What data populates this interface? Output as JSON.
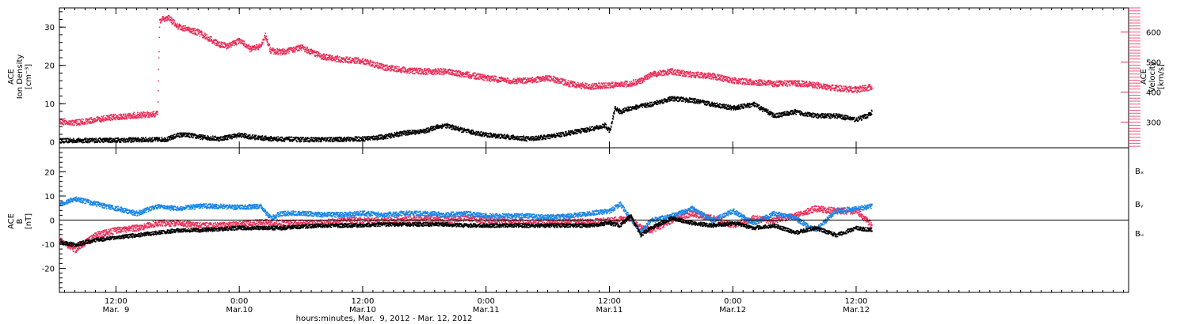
{
  "colors": {
    "black": "#000000",
    "red": "#e8305a",
    "blue": "#1a86e6"
  },
  "x_axis": {
    "title": "hours:minutes, Mar.  9, 2012 - Mar. 12, 2012",
    "range_hours": [
      6.5,
      110.5
    ],
    "major_ticks": [
      {
        "t": 12,
        "time": "12:00",
        "date": "Mar.  9"
      },
      {
        "t": 24,
        "time": "0:00",
        "date": "Mar.10"
      },
      {
        "t": 36,
        "time": "12:00",
        "date": "Mar.10"
      },
      {
        "t": 48,
        "time": "0:00",
        "date": "Mar.11"
      },
      {
        "t": 60,
        "time": "12:00",
        "date": "Mar.11"
      },
      {
        "t": 72,
        "time": "0:00",
        "date": "Mar.12"
      },
      {
        "t": 84,
        "time": "12:00",
        "date": "Mar.12"
      }
    ]
  },
  "chart_data": [
    {
      "type": "scatter",
      "panel": "top",
      "ylabel_left": [
        "ACE",
        "Ion Density",
        "[cm⁻³]"
      ],
      "ylabel_right": [
        "ACE",
        "Velocity",
        "[km/s]"
      ],
      "ylim_left": [
        -1.5,
        35
      ],
      "ylim_right": [
        215,
        680
      ],
      "yticks_left": [
        "0",
        "10",
        "20",
        "30"
      ],
      "yticks_right": [
        "300",
        "400",
        "500",
        "600"
      ],
      "series": [
        {
          "axis": "left",
          "color": "#000000",
          "x": [
            6.5,
            10,
            13,
            16,
            17,
            18,
            19,
            20,
            22,
            24,
            25,
            27,
            30,
            33,
            36,
            38,
            40,
            42,
            43,
            44,
            46,
            48,
            52,
            54,
            56,
            58,
            59,
            59.5,
            60,
            60.5,
            61,
            62,
            64,
            66,
            68,
            70,
            72,
            74,
            76,
            78,
            80,
            82,
            84,
            85,
            85.5
          ],
          "y": [
            0.5,
            0.6,
            0.7,
            0.8,
            0.9,
            2,
            2,
            1.5,
            1,
            2,
            1.5,
            1,
            0.8,
            0.8,
            1,
            1.5,
            2.5,
            3,
            4,
            4.5,
            3,
            2,
            1,
            1.5,
            2.5,
            3.5,
            4,
            4.5,
            3,
            9,
            8,
            9,
            10,
            11.5,
            11,
            10,
            9,
            10,
            7,
            8,
            7,
            7,
            6,
            7,
            8
          ],
          "spread": 0.6
        },
        {
          "axis": "right",
          "color": "#e8305a",
          "x": [
            6.5,
            8,
            10,
            12,
            14,
            16,
            16.2,
            17,
            18,
            19,
            20,
            21,
            22,
            23,
            24,
            25,
            26,
            26.5,
            27,
            28,
            30,
            32,
            34,
            36,
            38,
            40,
            42,
            44,
            46,
            48,
            50,
            52,
            54,
            56,
            58,
            60,
            62,
            63,
            64,
            66,
            68,
            70,
            72,
            74,
            76,
            78,
            80,
            82,
            84,
            85.5
          ],
          "y": [
            305,
            300,
            310,
            320,
            325,
            330,
            640,
            650,
            620,
            610,
            600,
            580,
            560,
            555,
            575,
            545,
            555,
            590,
            540,
            535,
            550,
            520,
            510,
            505,
            485,
            475,
            470,
            470,
            460,
            450,
            440,
            440,
            450,
            430,
            420,
            425,
            430,
            440,
            460,
            470,
            460,
            455,
            440,
            435,
            430,
            432,
            425,
            415,
            410,
            420
          ],
          "spread": 10
        }
      ]
    },
    {
      "type": "scatter",
      "panel": "bottom",
      "ylabel_left": [
        "ACE",
        "B",
        "[nT]"
      ],
      "ylim": [
        -30,
        30
      ],
      "yticks": [
        "-20",
        "-10",
        "0",
        "10",
        "20"
      ],
      "legend": [
        "Bₓ",
        "Bᵧ",
        "Bᵤ"
      ],
      "legend_placement": "right",
      "series": [
        {
          "name": "Bx",
          "color": "#000000",
          "x": [
            6.5,
            8,
            10,
            12,
            14,
            16,
            18,
            20,
            22,
            24,
            26,
            28,
            30,
            32,
            34,
            36,
            38,
            40,
            42,
            44,
            46,
            48,
            50,
            52,
            54,
            56,
            58,
            60,
            61,
            62,
            63,
            64,
            66,
            68,
            70,
            72,
            74,
            76,
            78,
            80,
            82,
            84,
            85.5
          ],
          "y": [
            -9,
            -10,
            -8,
            -7,
            -6,
            -5,
            -4,
            -4,
            -3.5,
            -3,
            -3,
            -3,
            -2.5,
            -2,
            -2,
            -2,
            -1.5,
            -1.5,
            -1.5,
            -1.5,
            -2,
            -2,
            -2,
            -2,
            -2,
            -2,
            -2,
            -1,
            -2,
            2,
            -6,
            -3,
            1,
            -1,
            -2,
            -1,
            -3,
            -2,
            -5,
            -3,
            -6,
            -3,
            -4
          ],
          "spread": 0.8
        },
        {
          "name": "By",
          "color": "#1a86e6",
          "x": [
            6.5,
            8,
            10,
            12,
            14,
            16,
            18,
            20,
            22,
            24,
            26,
            27,
            28,
            30,
            32,
            34,
            36,
            38,
            40,
            42,
            44,
            46,
            48,
            50,
            52,
            54,
            56,
            58,
            60,
            61,
            62,
            63,
            64,
            66,
            68,
            70,
            72,
            74,
            76,
            78,
            80,
            82,
            84,
            85.5
          ],
          "y": [
            7,
            9,
            7,
            5,
            3,
            6,
            5,
            6,
            6,
            5.5,
            6,
            1,
            3,
            3,
            2.5,
            2.5,
            3,
            2.5,
            3,
            3,
            2.5,
            3,
            2,
            2,
            2,
            1.5,
            2,
            3,
            4,
            7,
            1,
            -5,
            0,
            2,
            5,
            0,
            4,
            -1,
            3,
            1,
            -4,
            4,
            5,
            6
          ],
          "spread": 1
        },
        {
          "name": "Bz",
          "color": "#e8305a",
          "x": [
            6.5,
            8,
            10,
            12,
            14,
            16,
            18,
            20,
            22,
            24,
            26,
            28,
            30,
            32,
            34,
            36,
            38,
            40,
            42,
            44,
            46,
            48,
            50,
            52,
            54,
            56,
            58,
            60,
            62,
            63,
            64,
            66,
            68,
            70,
            72,
            74,
            76,
            78,
            80,
            82,
            84,
            85.5
          ],
          "y": [
            -8,
            -12,
            -6,
            -4,
            -3,
            -1,
            -1,
            -2,
            -2,
            -1.5,
            -0.5,
            -1,
            -1,
            -1,
            0,
            0,
            0,
            0.5,
            0.5,
            0.5,
            1,
            0,
            -0.5,
            -0.5,
            -0.5,
            -0.5,
            -0.5,
            0,
            1,
            -3,
            -4,
            0,
            3,
            1,
            -2,
            1,
            0,
            2,
            5,
            4,
            4,
            -2
          ],
          "spread": 1.3
        }
      ]
    }
  ]
}
